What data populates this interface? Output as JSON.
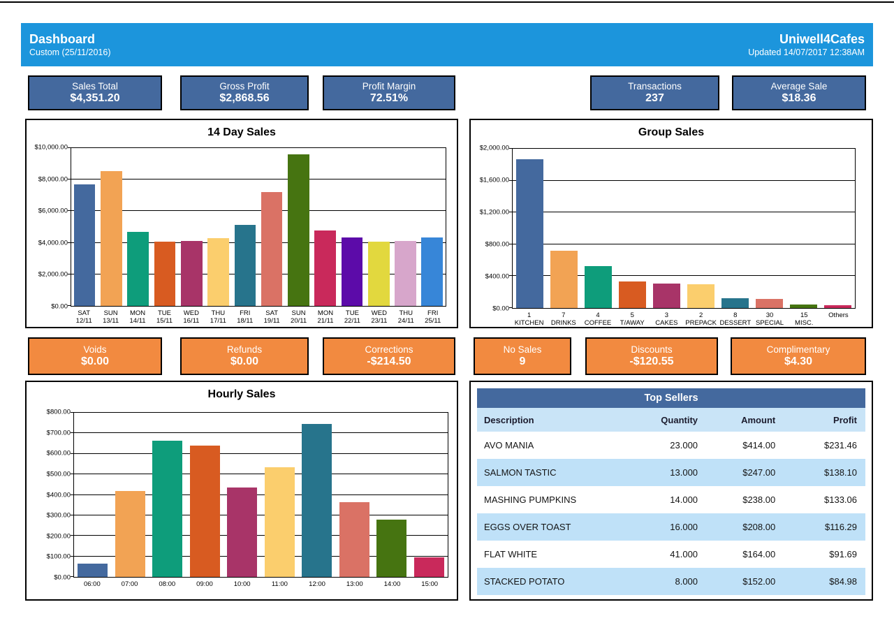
{
  "header": {
    "title": "Dashboard",
    "subtitle": "Custom (25/11/2016)",
    "brand": "Uniwell4Cafes",
    "updated": "Updated 14/07/2017 12:38AM"
  },
  "kpis_top": [
    {
      "label": "Sales Total",
      "value": "$4,351.20"
    },
    {
      "label": "Gross Profit",
      "value": "$2,868.56"
    },
    {
      "label": "Profit Margin",
      "value": "72.51%"
    },
    {
      "label": "Transactions",
      "value": "237"
    },
    {
      "label": "Average Sale",
      "value": "$18.36"
    }
  ],
  "kpis_mid": [
    {
      "label": "Voids",
      "value": "$0.00"
    },
    {
      "label": "Refunds",
      "value": "$0.00"
    },
    {
      "label": "Corrections",
      "value": "-$214.50"
    },
    {
      "label": "No Sales",
      "value": "9"
    },
    {
      "label": "Discounts",
      "value": "-$120.55"
    },
    {
      "label": "Complimentary",
      "value": "$4.30"
    }
  ],
  "colors": {
    "header_blue": "#1C95DC",
    "card_blue": "#44699E",
    "card_orange": "#F28A40",
    "table_title_blue": "#44699E",
    "table_header_blue": "#C9E4F7",
    "table_row_alt_blue": "#BFE1F8",
    "palette": [
      "#44699E",
      "#F2A354",
      "#0E9D7B",
      "#D85B21",
      "#A83468",
      "#FBCE6D",
      "#27748C",
      "#DA7265",
      "#467411",
      "#C9295B",
      "#5C0BA9",
      "#E2D83E",
      "#D7A6CB",
      "#3786D8"
    ]
  },
  "chart_data": [
    {
      "type": "bar",
      "title": "14 Day Sales",
      "categories": [
        [
          "SAT",
          "12/11"
        ],
        [
          "SUN",
          "13/11"
        ],
        [
          "MON",
          "14/11"
        ],
        [
          "TUE",
          "15/11"
        ],
        [
          "WED",
          "16/11"
        ],
        [
          "THU",
          "17/11"
        ],
        [
          "FRI",
          "18/11"
        ],
        [
          "SAT",
          "19/11"
        ],
        [
          "SUN",
          "20/11"
        ],
        [
          "MON",
          "21/11"
        ],
        [
          "TUE",
          "22/11"
        ],
        [
          "WED",
          "23/11"
        ],
        [
          "THU",
          "24/11"
        ],
        [
          "FRI",
          "25/11"
        ]
      ],
      "values": [
        7700,
        8550,
        4700,
        4050,
        4100,
        4300,
        5150,
        7200,
        9600,
        4780,
        4350,
        4050,
        4120,
        4350
      ],
      "ylim": [
        0,
        10000
      ],
      "ytick_step": 2000,
      "ytick_labels": [
        "$0.00",
        "$2,000.00",
        "$4,000.00",
        "$6,000.00",
        "$8,000.00",
        "$10,000.00"
      ],
      "grid": true,
      "legend": false
    },
    {
      "type": "bar",
      "title": "Group Sales",
      "categories": [
        [
          "1",
          "KITCHEN"
        ],
        [
          "7",
          "DRINKS"
        ],
        [
          "4",
          "COFFEE"
        ],
        [
          "5",
          "T/AWAY"
        ],
        [
          "3",
          "CAKES"
        ],
        [
          "2",
          "PREPACK"
        ],
        [
          "8",
          "DESSERT"
        ],
        [
          "30",
          "SPECIAL"
        ],
        [
          "15",
          "MISC."
        ],
        [
          "Others"
        ]
      ],
      "values": [
        1870,
        720,
        525,
        330,
        310,
        300,
        125,
        110,
        40,
        35
      ],
      "ylim": [
        0,
        2000
      ],
      "ytick_step": 400,
      "ytick_labels": [
        "$0.00",
        "$400.00",
        "$800.00",
        "$1,200.00",
        "$1,600.00",
        "$2,000.00"
      ],
      "grid": true,
      "legend": false
    },
    {
      "type": "bar",
      "title": "Hourly Sales",
      "categories": [
        [
          "06:00"
        ],
        [
          "07:00"
        ],
        [
          "08:00"
        ],
        [
          "09:00"
        ],
        [
          "10:00"
        ],
        [
          "11:00"
        ],
        [
          "12:00"
        ],
        [
          "13:00"
        ],
        [
          "14:00"
        ],
        [
          "15:00"
        ]
      ],
      "values": [
        65,
        420,
        665,
        640,
        435,
        535,
        745,
        365,
        280,
        95
      ],
      "ylim": [
        0,
        800
      ],
      "ytick_step": 100,
      "ytick_labels": [
        "$0.00",
        "$100.00",
        "$200.00",
        "$300.00",
        "$400.00",
        "$500.00",
        "$600.00",
        "$700.00",
        "$800.00"
      ],
      "grid": true,
      "legend": false
    }
  ],
  "top_sellers": {
    "title": "Top Sellers",
    "columns": [
      "Description",
      "Quantity",
      "Amount",
      "Profit"
    ],
    "rows": [
      [
        "AVO MANIA",
        "23.000",
        "$414.00",
        "$231.46"
      ],
      [
        "SALMON TASTIC",
        "13.000",
        "$247.00",
        "$138.10"
      ],
      [
        "MASHING PUMPKINS",
        "14.000",
        "$238.00",
        "$133.06"
      ],
      [
        "EGGS OVER TOAST",
        "16.000",
        "$208.00",
        "$116.29"
      ],
      [
        "FLAT WHITE",
        "41.000",
        "$164.00",
        "$91.69"
      ],
      [
        "STACKED POTATO",
        "8.000",
        "$152.00",
        "$84.98"
      ]
    ]
  }
}
